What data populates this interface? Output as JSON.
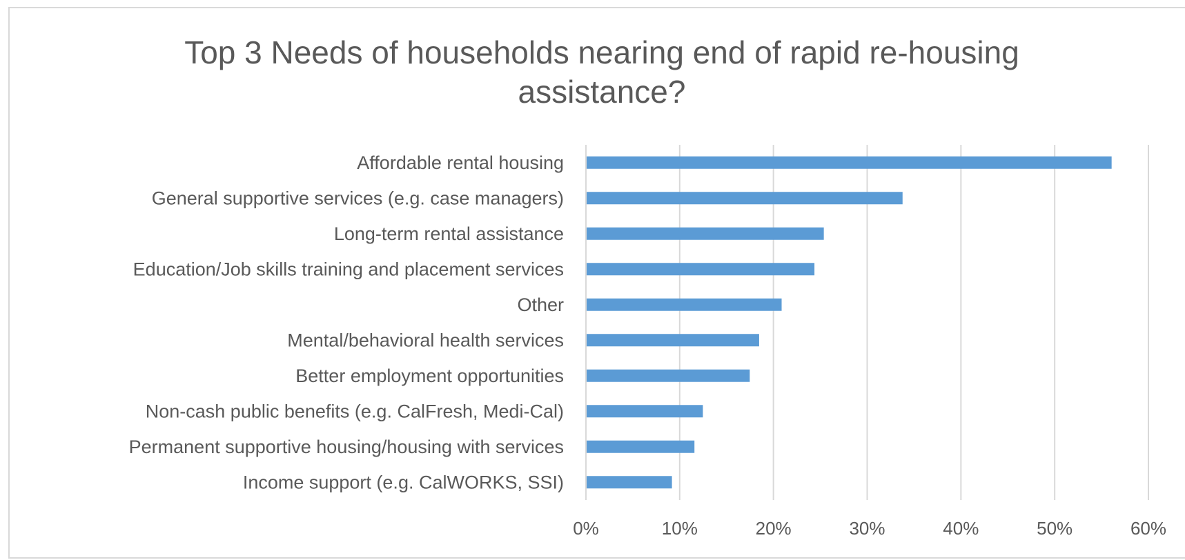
{
  "chart_data": {
    "type": "bar",
    "orientation": "horizontal",
    "title": "Top 3 Needs of households nearing end of rapid re-housing assistance?",
    "title_lines": [
      "Top 3 Needs of households nearing end of rapid re-housing",
      "assistance?"
    ],
    "categories": [
      "Affordable rental housing",
      "General supportive services (e.g. case managers)",
      "Long-term rental assistance",
      "Education/Job skills training and placement services",
      "Other",
      "Mental/behavioral health services",
      "Better employment opportunities",
      "Non-cash public benefits (e.g. CalFresh, Medi-Cal)",
      "Permanent supportive housing/housing with services",
      "Income support (e.g. CalWORKS, SSI)"
    ],
    "values": [
      56,
      33.7,
      25.3,
      24.3,
      20.8,
      18.4,
      17.4,
      12.4,
      11.5,
      9.1
    ],
    "xlim": [
      0,
      60
    ],
    "xticks": [
      "0%",
      "10%",
      "20%",
      "30%",
      "40%",
      "50%",
      "60%"
    ],
    "grid": true,
    "legend": "none",
    "colors": {
      "bar": "#5b9bd5",
      "grid": "#d9d9d9",
      "text": "#595959",
      "border": "#d9d9d9"
    }
  }
}
